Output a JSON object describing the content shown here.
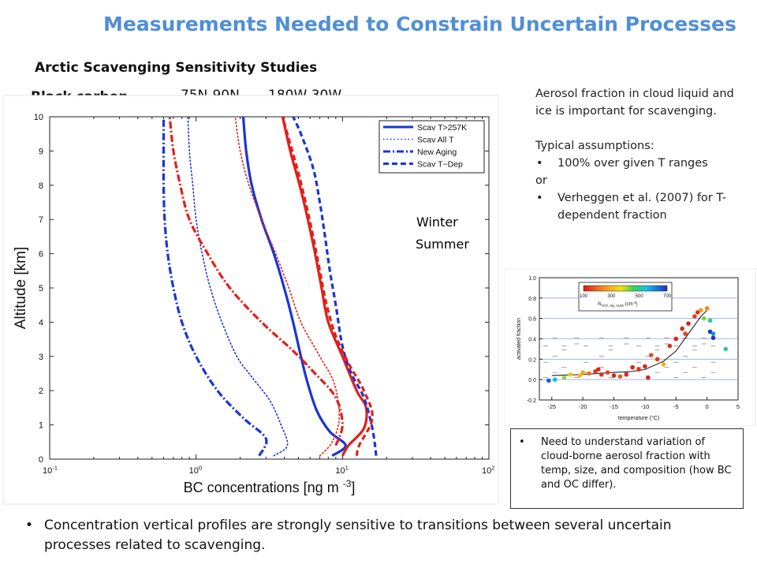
{
  "slide": {
    "title": "Measurements Needed to Constrain Uncertain Processes",
    "subtitle": "Arctic Scavenging Sensitivity Studies",
    "species": "Black carbon",
    "region_lat": "75N-90N",
    "region_lon": "180W-30W",
    "season_winter": "Winter",
    "season_summer": "Summer",
    "note_para1": "Aerosol fraction in cloud liquid and ice is important for scavenging.",
    "note_para2": "Typical assumptions:",
    "note_bullet1": "100% over given T ranges",
    "note_or": "or",
    "note_bullet2": "Verheggen et al. (2007) for T-dependent fraction",
    "callout_text": "Need to understand variation of cloud-borne aerosol fraction with temp, size, and composition (how BC and OC differ).",
    "bottom_bullet": "Concentration vertical profiles are strongly sensitive to transitions between several uncertain processes related to scavenging."
  },
  "colors": {
    "title": "#4f8fd6",
    "winter": "#1a35d6",
    "summer": "#e0201b"
  },
  "chart_data": [
    {
      "type": "line",
      "xlabel": "BC concentrations [ng m",
      "xlabel_sup": "-3",
      "xlabel_end": "]",
      "ylabel": "Altitude [km]",
      "xscale": "log",
      "xlim": [
        0.1,
        100
      ],
      "ylim": [
        0,
        10
      ],
      "xticks": [
        "10",
        "10",
        "10",
        "10"
      ],
      "xtick_exps": [
        "-1",
        "0",
        "1",
        "2"
      ],
      "xtick_vals": [
        0.1,
        1,
        10,
        100
      ],
      "yticks": [
        0,
        1,
        2,
        3,
        4,
        5,
        6,
        7,
        8,
        9,
        10
      ],
      "legend_position": "top-right",
      "legend": [
        {
          "label": "Scav T>257K",
          "style": "solid"
        },
        {
          "label": "Scav All T",
          "style": "dotted"
        },
        {
          "label": "New Aging",
          "style": "dashdot"
        },
        {
          "label": "Scav T−Dep",
          "style": "dashed"
        }
      ],
      "series": [
        {
          "season": "winter",
          "style": "solid",
          "color": "#1a35d6",
          "points": [
            [
              8.5,
              0.1
            ],
            [
              10.5,
              0.4
            ],
            [
              8.2,
              0.8
            ],
            [
              6.7,
              1.4
            ],
            [
              5.8,
              2.2
            ],
            [
              5.2,
              3.0
            ],
            [
              4.6,
              4.0
            ],
            [
              4.0,
              5.0
            ],
            [
              3.4,
              6.0
            ],
            [
              2.8,
              7.0
            ],
            [
              2.4,
              8.0
            ],
            [
              2.2,
              9.0
            ],
            [
              2.1,
              10.0
            ]
          ]
        },
        {
          "season": "summer",
          "style": "solid",
          "color": "#e0201b",
          "points": [
            [
              10.0,
              0.1
            ],
            [
              11.0,
              0.4
            ],
            [
              14.0,
              0.9
            ],
            [
              14.5,
              1.5
            ],
            [
              12.5,
              2.0
            ],
            [
              10.0,
              3.0
            ],
            [
              8.0,
              4.0
            ],
            [
              7.2,
              5.0
            ],
            [
              6.5,
              6.0
            ],
            [
              5.8,
              7.0
            ],
            [
              5.1,
              8.0
            ],
            [
              4.4,
              9.0
            ],
            [
              3.9,
              10.0
            ]
          ]
        },
        {
          "season": "winter",
          "style": "dotted",
          "color": "#1a35d6",
          "points": [
            [
              3.4,
              0.1
            ],
            [
              4.2,
              0.4
            ],
            [
              3.8,
              1.0
            ],
            [
              3.2,
              1.7
            ],
            [
              2.4,
              2.4
            ],
            [
              1.9,
              3.0
            ],
            [
              1.5,
              4.0
            ],
            [
              1.25,
              5.0
            ],
            [
              1.1,
              6.0
            ],
            [
              1.0,
              7.0
            ],
            [
              0.95,
              8.0
            ],
            [
              0.9,
              9.0
            ],
            [
              0.88,
              10.0
            ]
          ]
        },
        {
          "season": "summer",
          "style": "dotted",
          "color": "#e0201b",
          "points": [
            [
              7.0,
              0.1
            ],
            [
              8.5,
              0.5
            ],
            [
              9.5,
              1.2
            ],
            [
              8.8,
              2.2
            ],
            [
              7.0,
              3.0
            ],
            [
              5.2,
              4.0
            ],
            [
              4.3,
              5.0
            ],
            [
              3.5,
              6.0
            ],
            [
              2.8,
              7.0
            ],
            [
              2.3,
              8.0
            ],
            [
              2.0,
              9.0
            ],
            [
              1.85,
              10.0
            ]
          ]
        },
        {
          "season": "winter",
          "style": "dashdot",
          "color": "#1a35d6",
          "points": [
            [
              2.7,
              0.1
            ],
            [
              3.0,
              0.6
            ],
            [
              2.1,
              1.2
            ],
            [
              1.4,
              2.0
            ],
            [
              1.0,
              3.0
            ],
            [
              0.8,
              4.0
            ],
            [
              0.7,
              5.0
            ],
            [
              0.64,
              6.0
            ],
            [
              0.61,
              7.0
            ],
            [
              0.6,
              8.0
            ],
            [
              0.6,
              9.0
            ],
            [
              0.6,
              10.0
            ]
          ]
        },
        {
          "season": "summer",
          "style": "dashdot",
          "color": "#e0201b",
          "points": [
            [
              9.0,
              0.4
            ],
            [
              10.0,
              1.0
            ],
            [
              9.0,
              1.8
            ],
            [
              6.5,
              2.5
            ],
            [
              4.5,
              3.2
            ],
            [
              2.8,
              4.0
            ],
            [
              1.7,
              5.0
            ],
            [
              1.2,
              6.0
            ],
            [
              0.9,
              7.0
            ],
            [
              0.78,
              8.0
            ],
            [
              0.7,
              9.0
            ],
            [
              0.66,
              10.0
            ]
          ]
        },
        {
          "season": "winter",
          "style": "dashed",
          "color": "#1a35d6",
          "points": [
            [
              17.0,
              0.1
            ],
            [
              16.0,
              0.9
            ],
            [
              14.0,
              1.8
            ],
            [
              11.5,
              2.5
            ],
            [
              10.0,
              3.3
            ],
            [
              9.0,
              4.5
            ],
            [
              8.2,
              5.5
            ],
            [
              7.6,
              6.5
            ],
            [
              7.0,
              7.5
            ],
            [
              6.3,
              8.5
            ],
            [
              5.2,
              9.5
            ],
            [
              4.6,
              10.0
            ]
          ]
        },
        {
          "season": "summer",
          "style": "dashed",
          "color": "#e0201b",
          "points": [
            [
              12.5,
              0.1
            ],
            [
              13.0,
              0.4
            ],
            [
              16.0,
              1.2
            ],
            [
              14.0,
              2.0
            ],
            [
              11.0,
              2.8
            ],
            [
              9.0,
              3.6
            ],
            [
              7.8,
              4.5
            ],
            [
              7.0,
              5.5
            ],
            [
              6.3,
              6.5
            ],
            [
              5.6,
              7.5
            ],
            [
              4.9,
              8.5
            ],
            [
              4.2,
              9.5
            ],
            [
              3.9,
              10.0
            ]
          ]
        }
      ]
    },
    {
      "type": "scatter",
      "xlabel": "temperature (°C)",
      "ylabel": "activated fraction",
      "xlim": [
        -27,
        5
      ],
      "ylim": [
        -0.2,
        1.0
      ],
      "xticks": [
        -25,
        -20,
        -15,
        -10,
        -5,
        0,
        5
      ],
      "yticks": [
        -0.2,
        0.0,
        0.2,
        0.4,
        0.6,
        0.8,
        1.0
      ],
      "colorbar_label": "N",
      "colorbar_label_sub": "TOT, dry >100",
      "colorbar_label_unit": "(cm",
      "colorbar_label_unit_sup": "-3",
      "colorbar_label_unit_end": ")",
      "colorbar_ticks": [
        100,
        300,
        500,
        700
      ],
      "colorbar_range": [
        100,
        700
      ],
      "fit_curve": [
        [
          -25,
          0.04
        ],
        [
          -20,
          0.05
        ],
        [
          -15,
          0.07
        ],
        [
          -12,
          0.08
        ],
        [
          -10,
          0.1
        ],
        [
          -7,
          0.18
        ],
        [
          -5,
          0.28
        ],
        [
          -3,
          0.45
        ],
        [
          -1,
          0.62
        ],
        [
          0,
          0.68
        ]
      ],
      "points": [
        {
          "x": -25.5,
          "y": -0.01,
          "c": 650
        },
        {
          "x": -24.5,
          "y": 0.0,
          "c": 560
        },
        {
          "x": -23,
          "y": 0.02,
          "c": 420
        },
        {
          "x": -22,
          "y": 0.05,
          "c": 330
        },
        {
          "x": -20.5,
          "y": 0.04,
          "c": 300
        },
        {
          "x": -20,
          "y": 0.07,
          "c": 280
        },
        {
          "x": -19,
          "y": 0.06,
          "c": 210
        },
        {
          "x": -18,
          "y": 0.08,
          "c": 140
        },
        {
          "x": -17.5,
          "y": 0.1,
          "c": 120
        },
        {
          "x": -17,
          "y": 0.05,
          "c": 130
        },
        {
          "x": -16,
          "y": 0.07,
          "c": 150
        },
        {
          "x": -15,
          "y": 0.04,
          "c": 110
        },
        {
          "x": -14,
          "y": 0.03,
          "c": 180
        },
        {
          "x": -13,
          "y": 0.05,
          "c": 120
        },
        {
          "x": -12,
          "y": 0.12,
          "c": 110
        },
        {
          "x": -11,
          "y": 0.1,
          "c": 130
        },
        {
          "x": -10,
          "y": 0.13,
          "c": 120
        },
        {
          "x": -9.5,
          "y": 0.02,
          "c": 110
        },
        {
          "x": -8,
          "y": 0.2,
          "c": 140
        },
        {
          "x": -7,
          "y": 0.15,
          "c": 290
        },
        {
          "x": -6,
          "y": 0.33,
          "c": 130
        },
        {
          "x": -5,
          "y": 0.4,
          "c": 110
        },
        {
          "x": -4,
          "y": 0.5,
          "c": 120
        },
        {
          "x": -3.5,
          "y": 0.45,
          "c": 150
        },
        {
          "x": -3,
          "y": 0.55,
          "c": 110
        },
        {
          "x": -2,
          "y": 0.62,
          "c": 150
        },
        {
          "x": -1.5,
          "y": 0.66,
          "c": 130
        },
        {
          "x": -1,
          "y": 0.68,
          "c": 260
        },
        {
          "x": -0.5,
          "y": 0.6,
          "c": 430
        },
        {
          "x": 0,
          "y": 0.7,
          "c": 240
        },
        {
          "x": 0.5,
          "y": 0.58,
          "c": 500
        },
        {
          "x": 0.5,
          "y": 0.47,
          "c": 690
        },
        {
          "x": 1,
          "y": 0.41,
          "c": 720
        },
        {
          "x": 1,
          "y": 0.45,
          "c": 600
        },
        {
          "x": 3,
          "y": 0.3,
          "c": 500
        },
        {
          "x": -9,
          "y": 0.24,
          "c": 160
        }
      ]
    }
  ]
}
